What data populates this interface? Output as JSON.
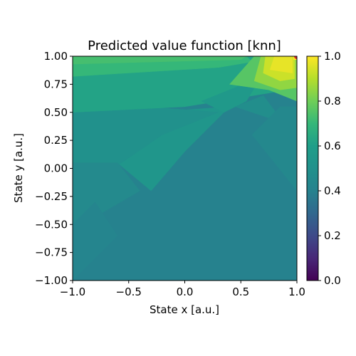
{
  "chart_data": {
    "type": "heatmap",
    "title": "Predicted value function [knn]",
    "xlabel": "State x [a.u.]",
    "ylabel": "State y [a.u.]",
    "xlim": [
      -1.0,
      1.0
    ],
    "ylim": [
      -1.0,
      1.0
    ],
    "x_ticks": [
      "−1.0",
      "−0.5",
      "0.0",
      "0.5",
      "1.0"
    ],
    "y_ticks": [
      "1.00",
      "0.75",
      "0.50",
      "0.25",
      "0.00",
      "−0.25",
      "−0.50",
      "−0.75",
      "−1.00"
    ],
    "colorbar": {
      "colormap": "viridis",
      "range": [
        0.0,
        1.0
      ],
      "ticks": [
        "0.0",
        "0.2",
        "0.4",
        "0.6",
        "0.8",
        "1.0"
      ]
    },
    "grid": false,
    "regions": [
      {
        "polygon": [
          [
            -1.0,
            -1.0
          ],
          [
            1.0,
            -1.0
          ],
          [
            1.0,
            1.0
          ],
          [
            -1.0,
            1.0
          ]
        ],
        "value": 0.4
      },
      {
        "polygon": [
          [
            -1.0,
            -0.05
          ],
          [
            -0.6,
            0.05
          ],
          [
            -0.3,
            -0.2
          ],
          [
            0.0,
            0.15
          ],
          [
            0.4,
            0.55
          ],
          [
            -1.0,
            0.45
          ]
        ],
        "value": 0.54
      },
      {
        "polygon": [
          [
            -1.0,
            -0.25
          ],
          [
            -0.2,
            0.3
          ],
          [
            0.3,
            0.5
          ],
          [
            -1.0,
            0.6
          ]
        ],
        "value": 0.5
      },
      {
        "polygon": [
          [
            -1.0,
            -0.55
          ],
          [
            -0.4,
            -0.2
          ],
          [
            -0.6,
            0.05
          ],
          [
            -1.0,
            0.05
          ]
        ],
        "value": 0.45
      },
      {
        "polygon": [
          [
            -1.0,
            -1.0
          ],
          [
            -0.6,
            -0.6
          ],
          [
            -0.8,
            -0.3
          ],
          [
            -1.0,
            -0.5
          ]
        ],
        "value": 0.42
      },
      {
        "polygon": [
          [
            -1.0,
            0.5
          ],
          [
            0.0,
            0.55
          ],
          [
            0.8,
            0.68
          ],
          [
            1.0,
            0.62
          ],
          [
            1.0,
            1.0
          ],
          [
            -1.0,
            1.0
          ]
        ],
        "value": 0.62
      },
      {
        "polygon": [
          [
            -1.0,
            0.82
          ],
          [
            0.3,
            0.9
          ],
          [
            0.6,
            0.95
          ],
          [
            0.55,
            1.0
          ],
          [
            -1.0,
            1.0
          ]
        ],
        "value": 0.7
      },
      {
        "polygon": [
          [
            -1.0,
            0.93
          ],
          [
            0.5,
            0.97
          ],
          [
            0.55,
            1.0
          ],
          [
            -1.0,
            1.0
          ]
        ],
        "value": 0.73
      },
      {
        "polygon": [
          [
            0.15,
            0.6
          ],
          [
            0.45,
            0.72
          ],
          [
            0.7,
            0.85
          ],
          [
            0.55,
            0.6
          ],
          [
            0.35,
            0.5
          ]
        ],
        "value": 0.56
      },
      {
        "polygon": [
          [
            0.45,
            0.55
          ],
          [
            0.7,
            0.65
          ],
          [
            1.0,
            0.25
          ],
          [
            1.0,
            0.05
          ],
          [
            0.75,
            0.45
          ]
        ],
        "value": 0.48
      },
      {
        "polygon": [
          [
            0.6,
            0.3
          ],
          [
            0.85,
            0.55
          ],
          [
            1.0,
            0.55
          ],
          [
            1.0,
            -0.2
          ]
        ],
        "value": 0.44
      },
      {
        "polygon": [
          [
            0.4,
            0.75
          ],
          [
            0.62,
            1.0
          ],
          [
            1.0,
            1.0
          ],
          [
            1.0,
            0.6
          ],
          [
            0.75,
            0.7
          ]
        ],
        "value": 0.76
      },
      {
        "polygon": [
          [
            0.62,
            0.78
          ],
          [
            0.68,
            1.0
          ],
          [
            1.0,
            1.0
          ],
          [
            1.0,
            0.72
          ],
          [
            0.85,
            0.7
          ]
        ],
        "value": 0.85
      },
      {
        "polygon": [
          [
            0.7,
            0.85
          ],
          [
            0.72,
            1.0
          ],
          [
            0.98,
            1.0
          ],
          [
            0.98,
            0.8
          ],
          [
            0.85,
            0.78
          ]
        ],
        "value": 0.93
      },
      {
        "polygon": [
          [
            0.76,
            0.88
          ],
          [
            0.8,
            1.0
          ],
          [
            0.96,
            1.0
          ],
          [
            0.96,
            0.85
          ]
        ],
        "value": 0.97
      },
      {
        "polygon": [
          [
            0.97,
            0.97
          ],
          [
            1.0,
            0.97
          ],
          [
            1.0,
            1.0
          ],
          [
            0.97,
            1.0
          ]
        ],
        "value": 1.0
      }
    ],
    "highlight_point": {
      "x": 1.0,
      "y": 1.0,
      "color": "#d62728"
    }
  }
}
